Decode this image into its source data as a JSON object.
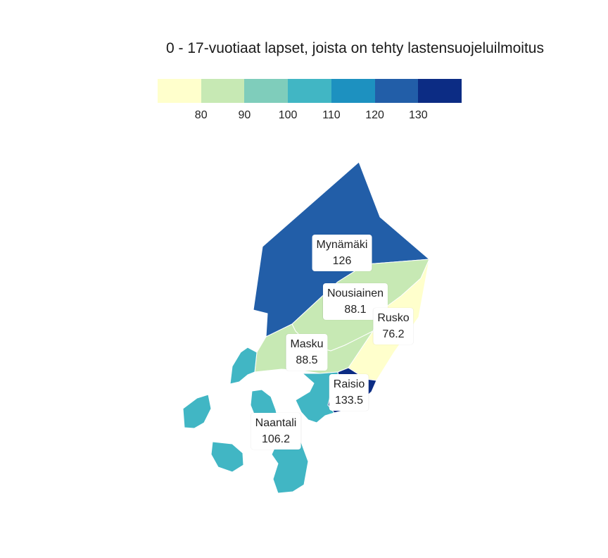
{
  "title": "0 - 17-vuotiaat lapset, joista on tehty lastensuojeluilmoitus",
  "legend": {
    "colors": [
      "#ffffcc",
      "#c7e9b4",
      "#7fcdbb",
      "#41b6c4",
      "#1d91c0",
      "#225ea8",
      "#0c2c84"
    ],
    "ticks": [
      "80",
      "90",
      "100",
      "110",
      "120",
      "130"
    ]
  },
  "regions": [
    {
      "name": "Mynämäki",
      "value": "126",
      "color": "#225ea8"
    },
    {
      "name": "Nousiainen",
      "value": "88.1",
      "color": "#c7e9b4"
    },
    {
      "name": "Rusko",
      "value": "76.2",
      "color": "#ffffcc"
    },
    {
      "name": "Masku",
      "value": "88.5",
      "color": "#c7e9b4"
    },
    {
      "name": "Raisio",
      "value": "133.5",
      "color": "#0c2c84"
    },
    {
      "name": "Naantali",
      "value": "106.2",
      "color": "#41b6c4"
    }
  ]
}
